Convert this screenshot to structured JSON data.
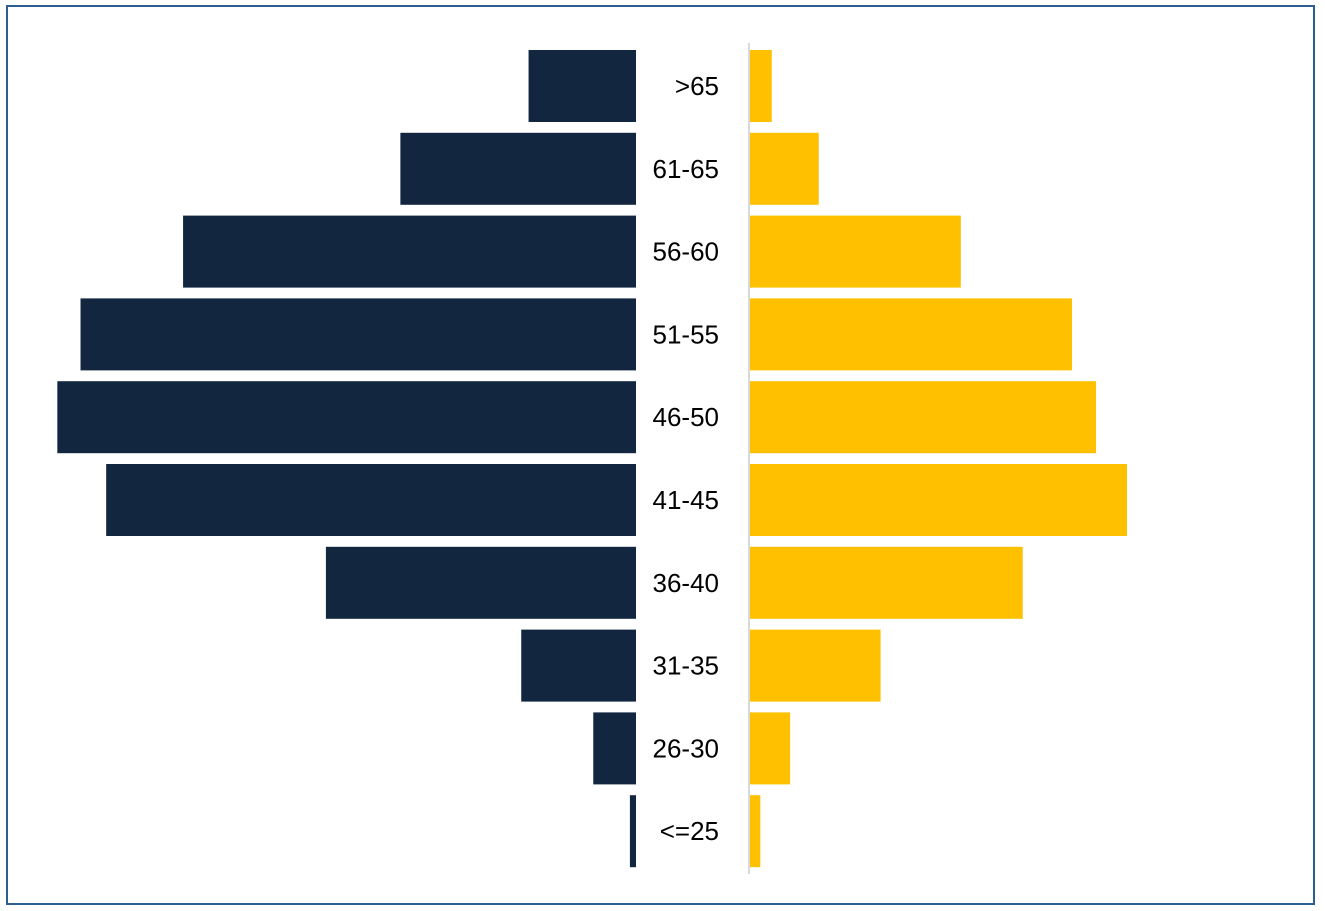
{
  "colors": {
    "left_series": "#13263F",
    "right_series": "#FFC000",
    "axis_line": "#D9D9D9",
    "frame_border": "#2E5D8F"
  },
  "chart_data": {
    "type": "bar",
    "orientation": "horizontal",
    "layout": "population-pyramid",
    "title": "",
    "xlabel": "",
    "ylabel": "",
    "grid": false,
    "legend": "none",
    "categories": [
      ">65",
      "61-65",
      "56-60",
      "51-55",
      "46-50",
      "41-45",
      "36-40",
      "31-35",
      "26-30",
      "<=25"
    ],
    "xlim": [
      0,
      48
    ],
    "series": [
      {
        "side": "left",
        "color": "#13263F",
        "values": [
          8.8,
          19.3,
          37.1,
          45.5,
          47.4,
          43.4,
          25.4,
          9.4,
          3.5,
          0.5
        ]
      },
      {
        "side": "right",
        "color": "#FFC000",
        "values": [
          1.9,
          6.0,
          18.4,
          28.1,
          30.2,
          32.9,
          23.8,
          11.4,
          3.5,
          0.9
        ]
      }
    ]
  }
}
